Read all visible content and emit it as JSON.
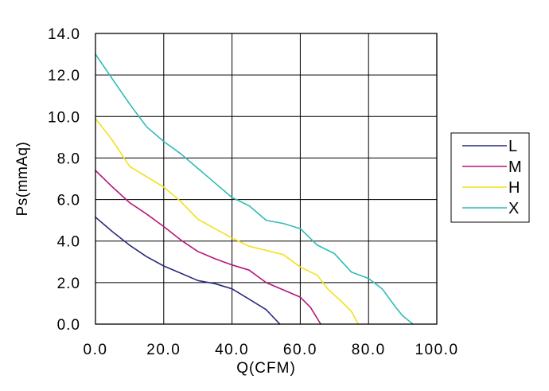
{
  "chart_data": {
    "type": "line",
    "title": "",
    "xlabel": "Q(CFM)",
    "ylabel": "Ps(mmAq)",
    "xlim": [
      0,
      100
    ],
    "ylim": [
      0,
      14
    ],
    "xticks": [
      "0.0",
      "20.0",
      "40.0",
      "60.0",
      "80.0",
      "100.0"
    ],
    "yticks": [
      "0.0",
      "2.0",
      "4.0",
      "6.0",
      "8.0",
      "10.0",
      "12.0",
      "14.0"
    ],
    "grid": true,
    "legend_position": "right",
    "series": [
      {
        "name": "L",
        "color": "#2b2a7e",
        "points": [
          [
            0,
            5.15
          ],
          [
            5,
            4.45
          ],
          [
            10,
            3.8
          ],
          [
            15,
            3.25
          ],
          [
            20,
            2.8
          ],
          [
            25,
            2.45
          ],
          [
            30,
            2.1
          ],
          [
            35,
            1.95
          ],
          [
            40,
            1.7
          ],
          [
            45,
            1.2
          ],
          [
            50,
            0.7
          ],
          [
            54,
            0
          ]
        ]
      },
      {
        "name": "M",
        "color": "#b5157d",
        "points": [
          [
            0,
            7.4
          ],
          [
            5,
            6.6
          ],
          [
            10,
            5.85
          ],
          [
            15,
            5.3
          ],
          [
            20,
            4.7
          ],
          [
            25,
            4.05
          ],
          [
            30,
            3.5
          ],
          [
            35,
            3.15
          ],
          [
            40,
            2.85
          ],
          [
            45,
            2.6
          ],
          [
            50,
            2.0
          ],
          [
            55,
            1.65
          ],
          [
            60,
            1.3
          ],
          [
            63,
            0.8
          ],
          [
            66,
            0
          ]
        ]
      },
      {
        "name": "H",
        "color": "#f4e01a",
        "points": [
          [
            0,
            9.9
          ],
          [
            5,
            8.85
          ],
          [
            10,
            7.6
          ],
          [
            15,
            7.1
          ],
          [
            20,
            6.6
          ],
          [
            25,
            5.9
          ],
          [
            30,
            5.05
          ],
          [
            35,
            4.6
          ],
          [
            40,
            4.15
          ],
          [
            45,
            3.75
          ],
          [
            50,
            3.55
          ],
          [
            55,
            3.35
          ],
          [
            60,
            2.75
          ],
          [
            65,
            2.35
          ],
          [
            68,
            1.7
          ],
          [
            72,
            1.1
          ],
          [
            75,
            0.6
          ],
          [
            77,
            0
          ]
        ]
      },
      {
        "name": "X",
        "color": "#2ebcb4",
        "points": [
          [
            0,
            13.0
          ],
          [
            5,
            11.8
          ],
          [
            10,
            10.6
          ],
          [
            15,
            9.5
          ],
          [
            20,
            8.8
          ],
          [
            25,
            8.2
          ],
          [
            30,
            7.5
          ],
          [
            35,
            6.8
          ],
          [
            40,
            6.1
          ],
          [
            45,
            5.7
          ],
          [
            50,
            5.0
          ],
          [
            55,
            4.85
          ],
          [
            60,
            4.6
          ],
          [
            65,
            3.8
          ],
          [
            70,
            3.4
          ],
          [
            75,
            2.5
          ],
          [
            80,
            2.2
          ],
          [
            84,
            1.7
          ],
          [
            88,
            0.8
          ],
          [
            90,
            0.4
          ],
          [
            93,
            0
          ]
        ]
      }
    ]
  }
}
